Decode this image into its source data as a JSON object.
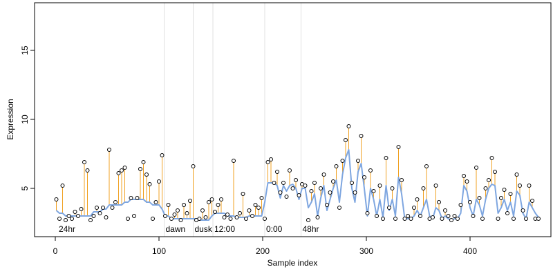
{
  "chart_data": {
    "type": "scatter",
    "xlabel": "Sample index",
    "ylabel": "Expression",
    "xlim": [
      -20,
      478
    ],
    "ylim": [
      1.5,
      18.45
    ],
    "xticks": [
      0,
      100,
      200,
      300,
      400
    ],
    "yticks": [
      5,
      10,
      15
    ],
    "point_color": "#000000",
    "stem_color": "#f0a020",
    "fit_color": "#7ea6e0",
    "vline_color": "#e0e0e0",
    "annotation_color": "#b0b0b0",
    "vlines": [
      105,
      133,
      152,
      202,
      237
    ],
    "annotations": [
      {
        "x": 2,
        "label": "24hr"
      },
      {
        "x": 105,
        "label": "dawn"
      },
      {
        "x": 133,
        "label": "dusk"
      },
      {
        "x": 152,
        "label": "12:00"
      },
      {
        "x": 202,
        "label": "0:00"
      },
      {
        "x": 237,
        "label": "48hr"
      }
    ],
    "x": [
      1,
      4,
      7,
      10,
      13,
      16,
      19,
      22,
      25,
      28,
      31,
      34,
      37,
      40,
      43,
      46,
      49,
      52,
      55,
      58,
      61,
      64,
      67,
      70,
      73,
      76,
      79,
      82,
      85,
      88,
      91,
      94,
      97,
      100,
      103,
      106,
      109,
      112,
      115,
      118,
      121,
      124,
      127,
      130,
      133,
      136,
      139,
      142,
      145,
      148,
      151,
      154,
      157,
      160,
      163,
      166,
      169,
      172,
      175,
      178,
      181,
      184,
      187,
      190,
      193,
      196,
      199,
      202,
      205,
      208,
      211,
      214,
      217,
      220,
      223,
      226,
      229,
      232,
      235,
      238,
      241,
      244,
      247,
      250,
      253,
      256,
      259,
      262,
      265,
      268,
      271,
      274,
      277,
      280,
      283,
      286,
      289,
      292,
      295,
      298,
      301,
      304,
      307,
      310,
      313,
      316,
      319,
      322,
      325,
      328,
      331,
      334,
      337,
      340,
      343,
      346,
      349,
      352,
      355,
      358,
      361,
      364,
      367,
      370,
      373,
      376,
      379,
      382,
      385,
      388,
      391,
      394,
      397,
      400,
      403,
      406,
      409,
      412,
      415,
      418,
      421,
      424,
      427,
      430,
      433,
      436,
      439,
      442,
      445,
      448,
      451,
      454,
      457,
      460,
      463,
      466
    ],
    "values": [
      4.2,
      2.8,
      5.2,
      2.7,
      3.0,
      2.8,
      3.3,
      3.0,
      3.5,
      6.9,
      6.3,
      2.7,
      3.0,
      3.6,
      3.2,
      3.6,
      2.9,
      7.8,
      3.6,
      4.0,
      6.1,
      6.3,
      6.5,
      2.8,
      4.3,
      3.0,
      4.3,
      6.4,
      6.9,
      6.0,
      5.3,
      2.8,
      4.0,
      5.5,
      7.4,
      3.0,
      3.8,
      2.8,
      3.1,
      3.4,
      2.7,
      3.8,
      3.2,
      4.1,
      6.6,
      2.7,
      2.8,
      3.4,
      2.9,
      4.0,
      4.2,
      3.3,
      3.8,
      4.2,
      2.9,
      3.1,
      2.8,
      7.0,
      2.9,
      3.2,
      4.6,
      2.8,
      3.4,
      3.0,
      3.8,
      3.6,
      4.3,
      2.8,
      6.9,
      7.1,
      5.4,
      6.2,
      4.7,
      5.4,
      4.4,
      6.3,
      5.0,
      5.6,
      4.5,
      5.3,
      5.2,
      2.7,
      4.8,
      5.4,
      2.9,
      5.0,
      6.0,
      3.8,
      4.7,
      5.5,
      6.6,
      3.6,
      7.0,
      8.5,
      9.5,
      5.4,
      4.7,
      7.0,
      8.8,
      5.8,
      3.2,
      6.3,
      4.8,
      3.0,
      5.2,
      2.8,
      7.2,
      3.6,
      5.0,
      2.8,
      8.0,
      5.6,
      2.8,
      3.0,
      2.8,
      3.6,
      4.2,
      3.0,
      5.0,
      6.6,
      2.8,
      2.9,
      5.2,
      4.0,
      2.8,
      3.4,
      3.0,
      2.7,
      3.0,
      2.8,
      3.8,
      5.9,
      5.5,
      4.0,
      3.0,
      6.5,
      4.3,
      2.8,
      5.0,
      5.6,
      7.2,
      6.2,
      2.8,
      4.3,
      4.9,
      3.2,
      4.6,
      2.8,
      6.0,
      5.2,
      3.4,
      2.8,
      5.2,
      4.1,
      2.8,
      2.8
    ],
    "fit": [
      3.4,
      3.2,
      3.2,
      3.0,
      3.0,
      3.0,
      3.0,
      3.0,
      3.0,
      3.0,
      3.0,
      3.0,
      3.3,
      3.3,
      3.3,
      3.5,
      3.5,
      3.8,
      3.8,
      3.8,
      3.8,
      3.8,
      4.0,
      4.0,
      4.2,
      4.2,
      4.2,
      4.2,
      4.2,
      4.0,
      4.0,
      3.8,
      3.8,
      3.8,
      3.5,
      3.0,
      3.0,
      2.8,
      2.8,
      2.8,
      2.8,
      2.8,
      2.8,
      2.8,
      2.8,
      2.8,
      2.7,
      2.7,
      2.7,
      2.7,
      3.0,
      3.2,
      3.2,
      3.2,
      3.2,
      3.0,
      3.0,
      3.0,
      2.9,
      2.9,
      2.9,
      2.9,
      3.0,
      3.0,
      3.0,
      3.0,
      3.0,
      4.0,
      5.4,
      5.4,
      5.4,
      5.2,
      4.3,
      5.2,
      4.8,
      5.2,
      5.3,
      5.0,
      4.2,
      5.0,
      5.0,
      3.6,
      4.0,
      4.6,
      3.0,
      4.3,
      5.2,
      3.4,
      4.2,
      5.0,
      5.6,
      4.0,
      6.0,
      7.2,
      7.8,
      5.0,
      4.0,
      6.2,
      6.8,
      5.0,
      3.0,
      5.0,
      4.2,
      3.0,
      4.2,
      2.9,
      5.2,
      3.4,
      4.2,
      3.0,
      5.8,
      4.6,
      2.8,
      2.8,
      2.8,
      3.0,
      3.4,
      3.0,
      3.6,
      4.2,
      3.0,
      2.8,
      3.6,
      3.4,
      2.8,
      3.0,
      2.8,
      2.7,
      2.8,
      2.8,
      3.2,
      5.2,
      4.8,
      3.6,
      3.0,
      4.2,
      3.8,
      3.0,
      4.2,
      5.0,
      5.3,
      5.2,
      3.2,
      3.6,
      4.2,
      3.4,
      4.0,
      3.0,
      4.8,
      4.5,
      3.2,
      2.8,
      4.0,
      3.6,
      3.2,
      2.9
    ]
  }
}
